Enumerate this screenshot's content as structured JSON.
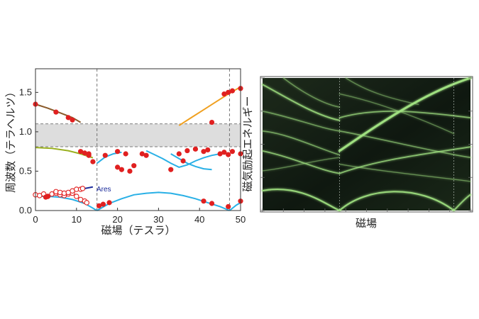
{
  "chart_data": [
    {
      "type": "scatter",
      "xlabel": "磁場（テスラ）",
      "ylabel": "周波数（テラヘルツ）",
      "xlim": [
        0,
        50
      ],
      "ylim": [
        0,
        1.8
      ],
      "xticks": [
        0,
        10,
        20,
        30,
        40,
        50
      ],
      "yticks": [
        0.0,
        0.5,
        1.0,
        1.5
      ],
      "ytick_labels": [
        "0.0",
        "0.5",
        "1.0",
        "1.5"
      ],
      "grid": false,
      "band": {
        "y_from": 0.81,
        "y_to": 1.1,
        "color": "#dddddd"
      },
      "vlines": [
        15,
        47.3
      ],
      "annotation": "Ares",
      "colors": {
        "filled": "#e02020",
        "open": "#e02020",
        "brown": "#8a5a2a",
        "olive": "#9ab020",
        "orange": "#f0a020",
        "navy": "#1a2a9a",
        "cyan": "#29b0e6"
      },
      "series_filled": {
        "x": [
          0,
          5,
          8,
          9,
          11,
          12,
          13,
          13,
          14,
          17,
          20,
          22,
          26,
          27,
          35,
          37,
          39,
          41,
          42,
          45,
          46,
          47,
          48,
          50,
          2.5,
          3,
          15.5,
          16.5,
          18,
          20,
          21,
          23,
          24,
          33,
          36,
          41,
          43,
          47,
          50,
          43,
          46,
          47,
          48,
          50
        ],
        "y": [
          1.35,
          1.25,
          1.18,
          1.15,
          0.75,
          0.73,
          0.72,
          0.7,
          0.62,
          0.7,
          0.75,
          0.72,
          0.72,
          0.7,
          0.72,
          0.76,
          0.78,
          0.75,
          0.77,
          0.72,
          0.74,
          0.71,
          0.75,
          0.72,
          0.17,
          0.18,
          0.06,
          0.08,
          0.1,
          0.55,
          0.52,
          0.5,
          0.57,
          0.52,
          0.63,
          0.12,
          0.09,
          0.05,
          0.12,
          1.12,
          1.48,
          1.5,
          1.52,
          1.55
        ]
      },
      "series_open": {
        "x": [
          0,
          1,
          2,
          3,
          4,
          5,
          6,
          7,
          8,
          9,
          10,
          11,
          12,
          12.5,
          5,
          6,
          7,
          8,
          9,
          10,
          11,
          11.5
        ],
        "y": [
          0.2,
          0.19,
          0.21,
          0.18,
          0.21,
          0.22,
          0.2,
          0.19,
          0.21,
          0.22,
          0.18,
          0.14,
          0.12,
          0.1,
          0.24,
          0.23,
          0.22,
          0.23,
          0.25,
          0.27,
          0.27,
          0.28
        ]
      },
      "curves": [
        {
          "color": "brown",
          "x": [
            0,
            3,
            6,
            9,
            11
          ],
          "y": [
            1.35,
            1.3,
            1.24,
            1.18,
            1.12
          ]
        },
        {
          "color": "olive",
          "x": [
            0,
            4,
            8,
            11,
            14
          ],
          "y": [
            0.8,
            0.79,
            0.76,
            0.72,
            0.67
          ]
        },
        {
          "color": "orange",
          "x": [
            35,
            38,
            41,
            44,
            47,
            50
          ],
          "y": [
            1.08,
            1.18,
            1.28,
            1.38,
            1.48,
            1.57
          ]
        },
        {
          "color": "navy",
          "x": [
            2,
            6,
            10,
            14
          ],
          "y": [
            0.19,
            0.22,
            0.26,
            0.3
          ]
        },
        {
          "color": "cyan",
          "x": [
            0,
            3,
            6,
            9,
            12,
            15
          ],
          "y": [
            0.18,
            0.18,
            0.17,
            0.14,
            0.09,
            0.0
          ]
        },
        {
          "color": "cyan",
          "x": [
            15,
            18,
            21,
            24,
            27,
            30,
            33,
            36,
            39,
            42,
            45,
            47.3
          ],
          "y": [
            0.0,
            0.09,
            0.15,
            0.2,
            0.22,
            0.23,
            0.22,
            0.19,
            0.15,
            0.1,
            0.05,
            0.0
          ]
        },
        {
          "color": "cyan",
          "x": [
            47.3,
            49,
            50
          ],
          "y": [
            0.0,
            0.07,
            0.1
          ]
        },
        {
          "color": "cyan",
          "x": [
            15,
            17,
            19,
            21
          ],
          "y": [
            0.6,
            0.68,
            0.72,
            0.74
          ]
        },
        {
          "color": "cyan",
          "x": [
            27,
            29,
            31,
            33,
            35,
            37,
            39,
            41,
            43,
            45,
            47
          ],
          "y": [
            0.76,
            0.71,
            0.66,
            0.6,
            0.55,
            0.58,
            0.63,
            0.67,
            0.7,
            0.72,
            0.73
          ]
        },
        {
          "color": "cyan",
          "x": [
            33,
            35,
            37,
            39,
            41,
            43
          ],
          "y": [
            0.72,
            0.66,
            0.6,
            0.56,
            0.53,
            0.52
          ]
        }
      ]
    },
    {
      "type": "heatmap",
      "xlabel": "磁場",
      "ylabel": "磁気励起エネルギー",
      "grid": false,
      "vlines_frac": [
        0.37,
        0.92
      ],
      "colors": {
        "background": "#111a12",
        "line": "#9fe080",
        "glow": "#cfff90"
      }
    }
  ]
}
